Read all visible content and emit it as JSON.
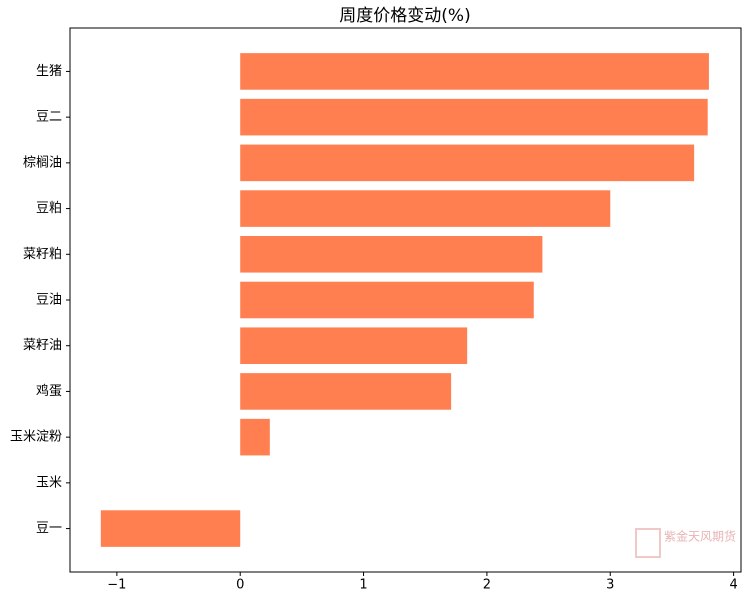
{
  "chart_data": {
    "type": "barh",
    "title": "周度价格变动(%)",
    "categories": [
      "生猪",
      "豆二",
      "棕榈油",
      "豆粕",
      "菜籽粕",
      "豆油",
      "菜籽油",
      "鸡蛋",
      "玉米淀粉",
      "玉米",
      "豆一"
    ],
    "values": [
      3.8,
      3.79,
      3.68,
      3.0,
      2.45,
      2.38,
      1.84,
      1.71,
      0.24,
      0,
      -1.13
    ],
    "color": "#ff7f50",
    "xlim": [
      -1.38,
      4.06
    ],
    "xticks": [
      {
        "value": -1,
        "label": "−1"
      },
      0,
      1,
      2,
      3,
      4
    ],
    "watermark": "紫金天风期货"
  }
}
